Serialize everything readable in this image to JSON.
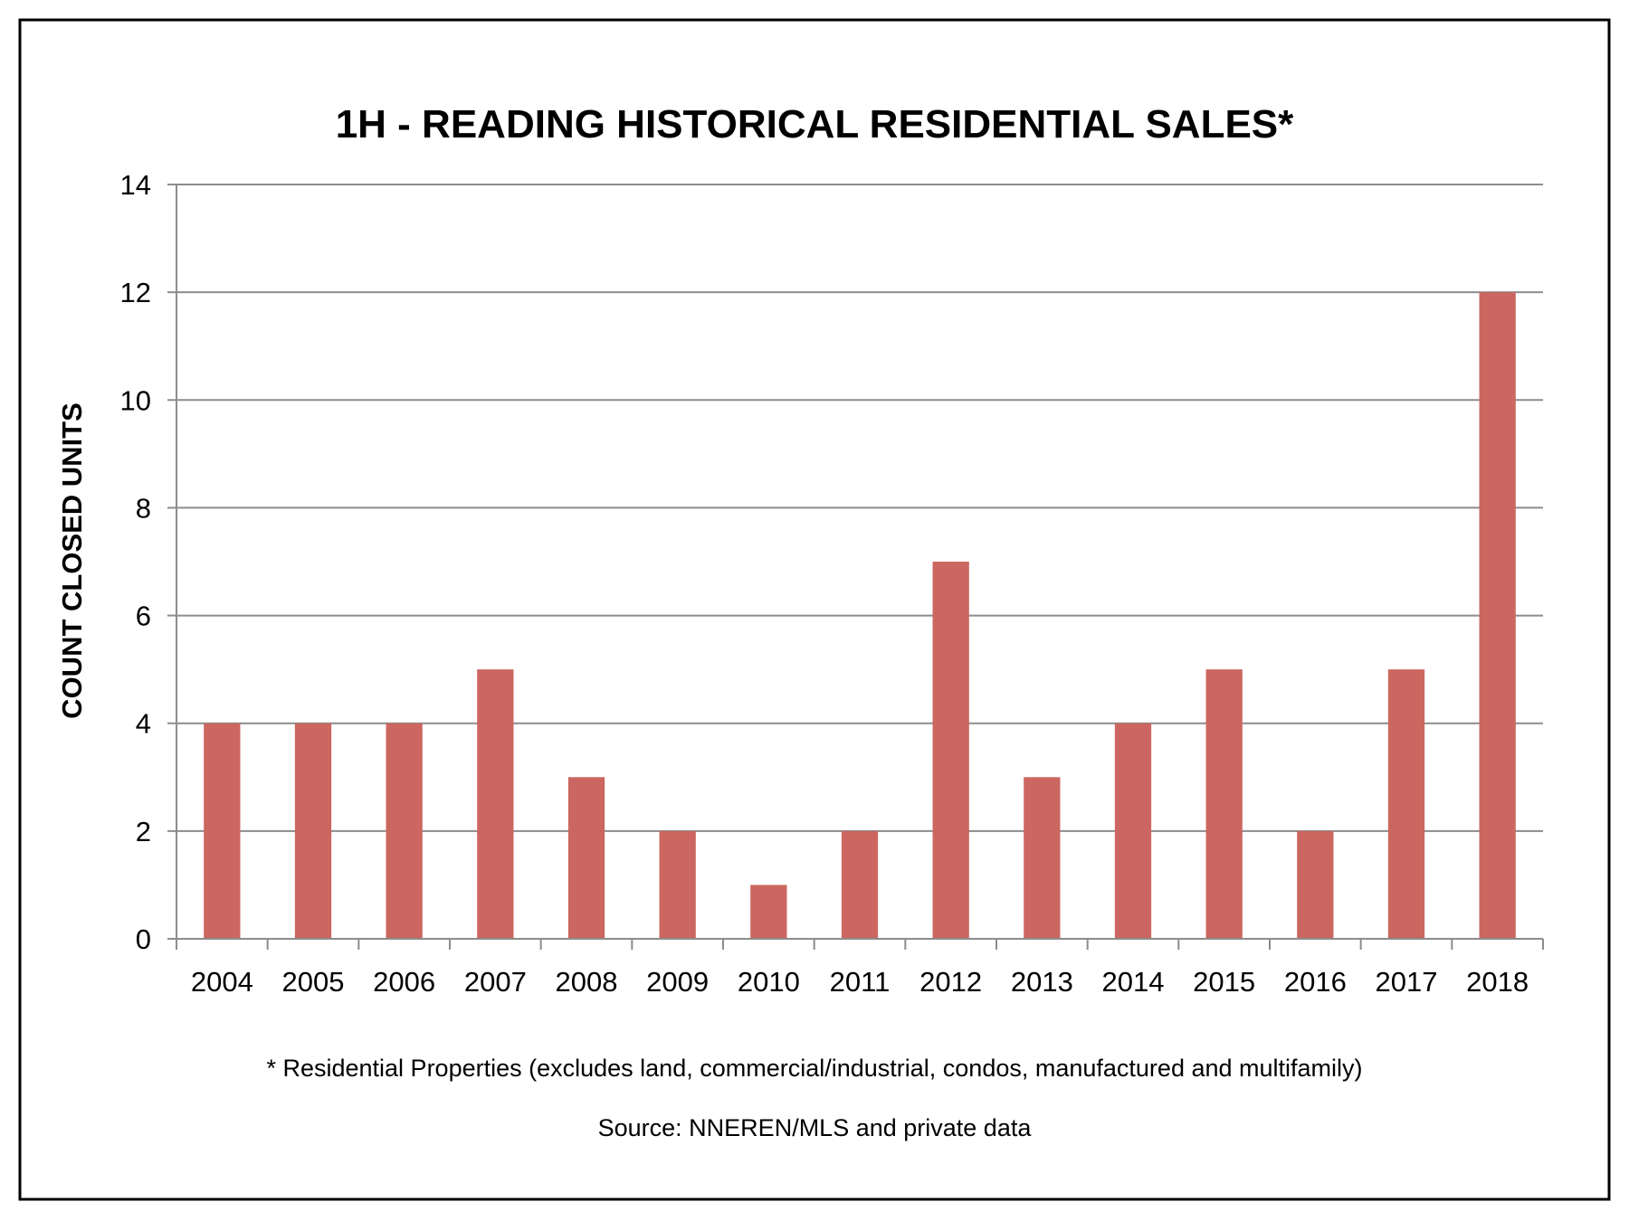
{
  "chart_data": {
    "type": "bar",
    "title": "1H - READING HISTORICAL RESIDENTIAL SALES*",
    "ylabel": "COUNT CLOSED UNITS",
    "xlabel": "",
    "categories": [
      "2004",
      "2005",
      "2006",
      "2007",
      "2008",
      "2009",
      "2010",
      "2011",
      "2012",
      "2013",
      "2014",
      "2015",
      "2016",
      "2017",
      "2018"
    ],
    "values": [
      4,
      4,
      4,
      5,
      3,
      2,
      1,
      2,
      7,
      3,
      4,
      5,
      2,
      5,
      12
    ],
    "ylim": [
      0,
      14
    ],
    "yticks": [
      0,
      2,
      4,
      6,
      8,
      10,
      12,
      14
    ],
    "grid": true,
    "legend": "none",
    "bar_color": "#cc6660",
    "footnote": "* Residential Properties (excludes land, commercial/industrial, condos, manufactured and multifamily)",
    "source": "Source: NNEREN/MLS and private data"
  }
}
